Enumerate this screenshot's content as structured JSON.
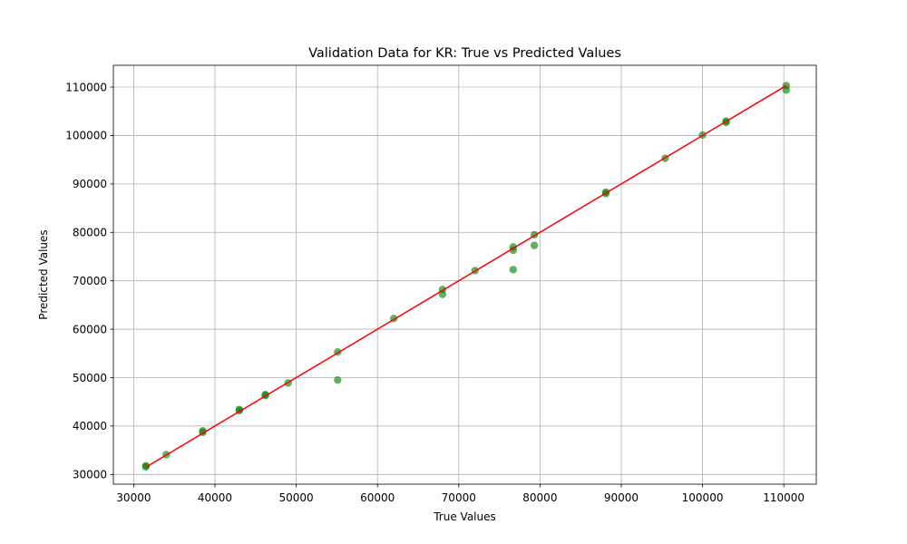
{
  "chart_data": {
    "type": "scatter",
    "title": "Validation Data for KR: True vs Predicted Values",
    "xlabel": "True Values",
    "ylabel": "Predicted Values",
    "xlim": [
      27500,
      114000
    ],
    "ylim": [
      28000,
      114500
    ],
    "xticks": [
      30000,
      40000,
      50000,
      60000,
      70000,
      80000,
      90000,
      100000,
      110000
    ],
    "xtick_labels": [
      "30000",
      "40000",
      "50000",
      "60000",
      "70000",
      "80000",
      "90000",
      "100000",
      "110000"
    ],
    "yticks": [
      30000,
      40000,
      50000,
      60000,
      70000,
      80000,
      90000,
      100000,
      110000
    ],
    "ytick_labels": [
      "30000",
      "40000",
      "50000",
      "60000",
      "70000",
      "80000",
      "90000",
      "100000",
      "110000"
    ],
    "grid": true,
    "colors": {
      "points": "#008000",
      "reference_line": "#ff0000",
      "grid": "#b0b0b0",
      "axes": "#000000"
    },
    "reference_line": {
      "x": [
        31500,
        110300
      ],
      "y": [
        31500,
        110300
      ]
    },
    "series": [
      {
        "x": [
          31500,
          31500,
          34000,
          38500,
          38500,
          43000,
          43000,
          46200,
          46200,
          49000,
          55100,
          55100,
          62000,
          68000,
          68000,
          72000,
          76700,
          76700,
          76700,
          79300,
          79300,
          88100,
          88100,
          95400,
          100000,
          102900,
          102900,
          110300,
          110300
        ],
        "y": [
          31800,
          31600,
          34100,
          39000,
          38700,
          43400,
          43200,
          46500,
          46300,
          48900,
          55300,
          49500,
          62200,
          68200,
          67200,
          72100,
          77000,
          76300,
          72300,
          79500,
          77300,
          88300,
          88000,
          95300,
          100100,
          103000,
          102700,
          110300,
          109400
        ]
      }
    ]
  }
}
